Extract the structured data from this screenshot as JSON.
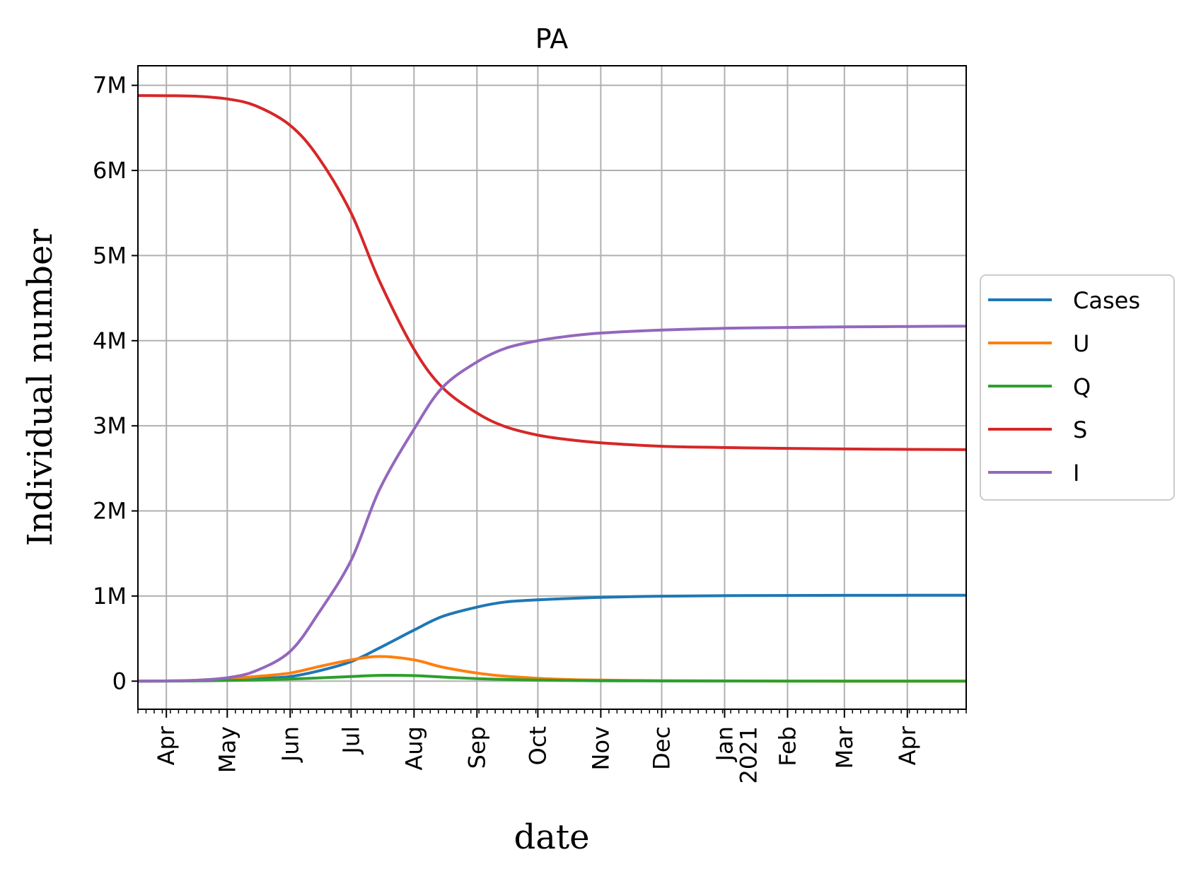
{
  "chart_data": {
    "type": "line",
    "title": "PA",
    "xlabel": "date",
    "ylabel": "Individual number",
    "grid": true,
    "legend_placement": "outside-right",
    "x_range": [
      "2020-03-18",
      "2021-04-30"
    ],
    "ylim": [
      -330000,
      7230000
    ],
    "y_ticks": [
      {
        "value": 0,
        "label": "0"
      },
      {
        "value": 1000000,
        "label": "1M"
      },
      {
        "value": 2000000,
        "label": "2M"
      },
      {
        "value": 3000000,
        "label": "3M"
      },
      {
        "value": 4000000,
        "label": "4M"
      },
      {
        "value": 5000000,
        "label": "5M"
      },
      {
        "value": 6000000,
        "label": "6M"
      },
      {
        "value": 7000000,
        "label": "7M"
      }
    ],
    "x_ticks": [
      {
        "date": "2020-04-01",
        "label": "Apr"
      },
      {
        "date": "2020-05-01",
        "label": "May"
      },
      {
        "date": "2020-06-01",
        "label": "Jun"
      },
      {
        "date": "2020-07-01",
        "label": "Jul"
      },
      {
        "date": "2020-08-01",
        "label": "Aug"
      },
      {
        "date": "2020-09-01",
        "label": "Sep"
      },
      {
        "date": "2020-10-01",
        "label": "Oct"
      },
      {
        "date": "2020-11-01",
        "label": "Nov"
      },
      {
        "date": "2020-12-01",
        "label": "Dec"
      },
      {
        "date": "2021-01-01",
        "label": "Jan",
        "sublabel": "2021"
      },
      {
        "date": "2021-02-01",
        "label": "Feb"
      },
      {
        "date": "2021-03-01",
        "label": "Mar"
      },
      {
        "date": "2021-04-01",
        "label": "Apr"
      }
    ],
    "x": [
      "2020-03-18",
      "2020-04-01",
      "2020-04-15",
      "2020-05-01",
      "2020-05-15",
      "2020-06-01",
      "2020-06-15",
      "2020-07-01",
      "2020-07-15",
      "2020-08-01",
      "2020-08-15",
      "2020-09-01",
      "2020-09-15",
      "2020-10-01",
      "2020-10-15",
      "2020-11-01",
      "2020-12-01",
      "2021-01-01",
      "2021-02-01",
      "2021-03-01",
      "2021-04-01",
      "2021-04-30"
    ],
    "series": [
      {
        "name": "Cases",
        "color": "#1f77b4",
        "values": [
          0,
          2000,
          6000,
          14000,
          28000,
          55000,
          120000,
          230000,
          390000,
          600000,
          760000,
          870000,
          930000,
          955000,
          970000,
          985000,
          998000,
          1004000,
          1007000,
          1008000,
          1009000,
          1010000
        ]
      },
      {
        "name": "U",
        "color": "#ff7f0e",
        "values": [
          0,
          3000,
          10000,
          30000,
          55000,
          95000,
          170000,
          250000,
          290000,
          250000,
          165000,
          95000,
          58000,
          33000,
          20000,
          12000,
          6000,
          3000,
          1500,
          800,
          400,
          200
        ]
      },
      {
        "name": "Q",
        "color": "#2ca02c",
        "values": [
          0,
          1000,
          3000,
          8000,
          15000,
          25000,
          38000,
          55000,
          68000,
          65000,
          48000,
          30000,
          20000,
          13000,
          8000,
          5000,
          2500,
          1200,
          600,
          300,
          150,
          80
        ]
      },
      {
        "name": "S",
        "color": "#d62728",
        "values": [
          6880000,
          6878000,
          6873000,
          6840000,
          6760000,
          6530000,
          6150000,
          5500000,
          4700000,
          3900000,
          3450000,
          3150000,
          2990000,
          2890000,
          2840000,
          2800000,
          2760000,
          2745000,
          2735000,
          2728000,
          2723000,
          2720000
        ]
      },
      {
        "name": "I",
        "color": "#9467bd",
        "values": [
          0,
          2000,
          10000,
          40000,
          120000,
          350000,
          800000,
          1420000,
          2250000,
          2960000,
          3450000,
          3750000,
          3910000,
          4000000,
          4050000,
          4090000,
          4125000,
          4145000,
          4155000,
          4162000,
          4167000,
          4170000
        ]
      }
    ]
  }
}
